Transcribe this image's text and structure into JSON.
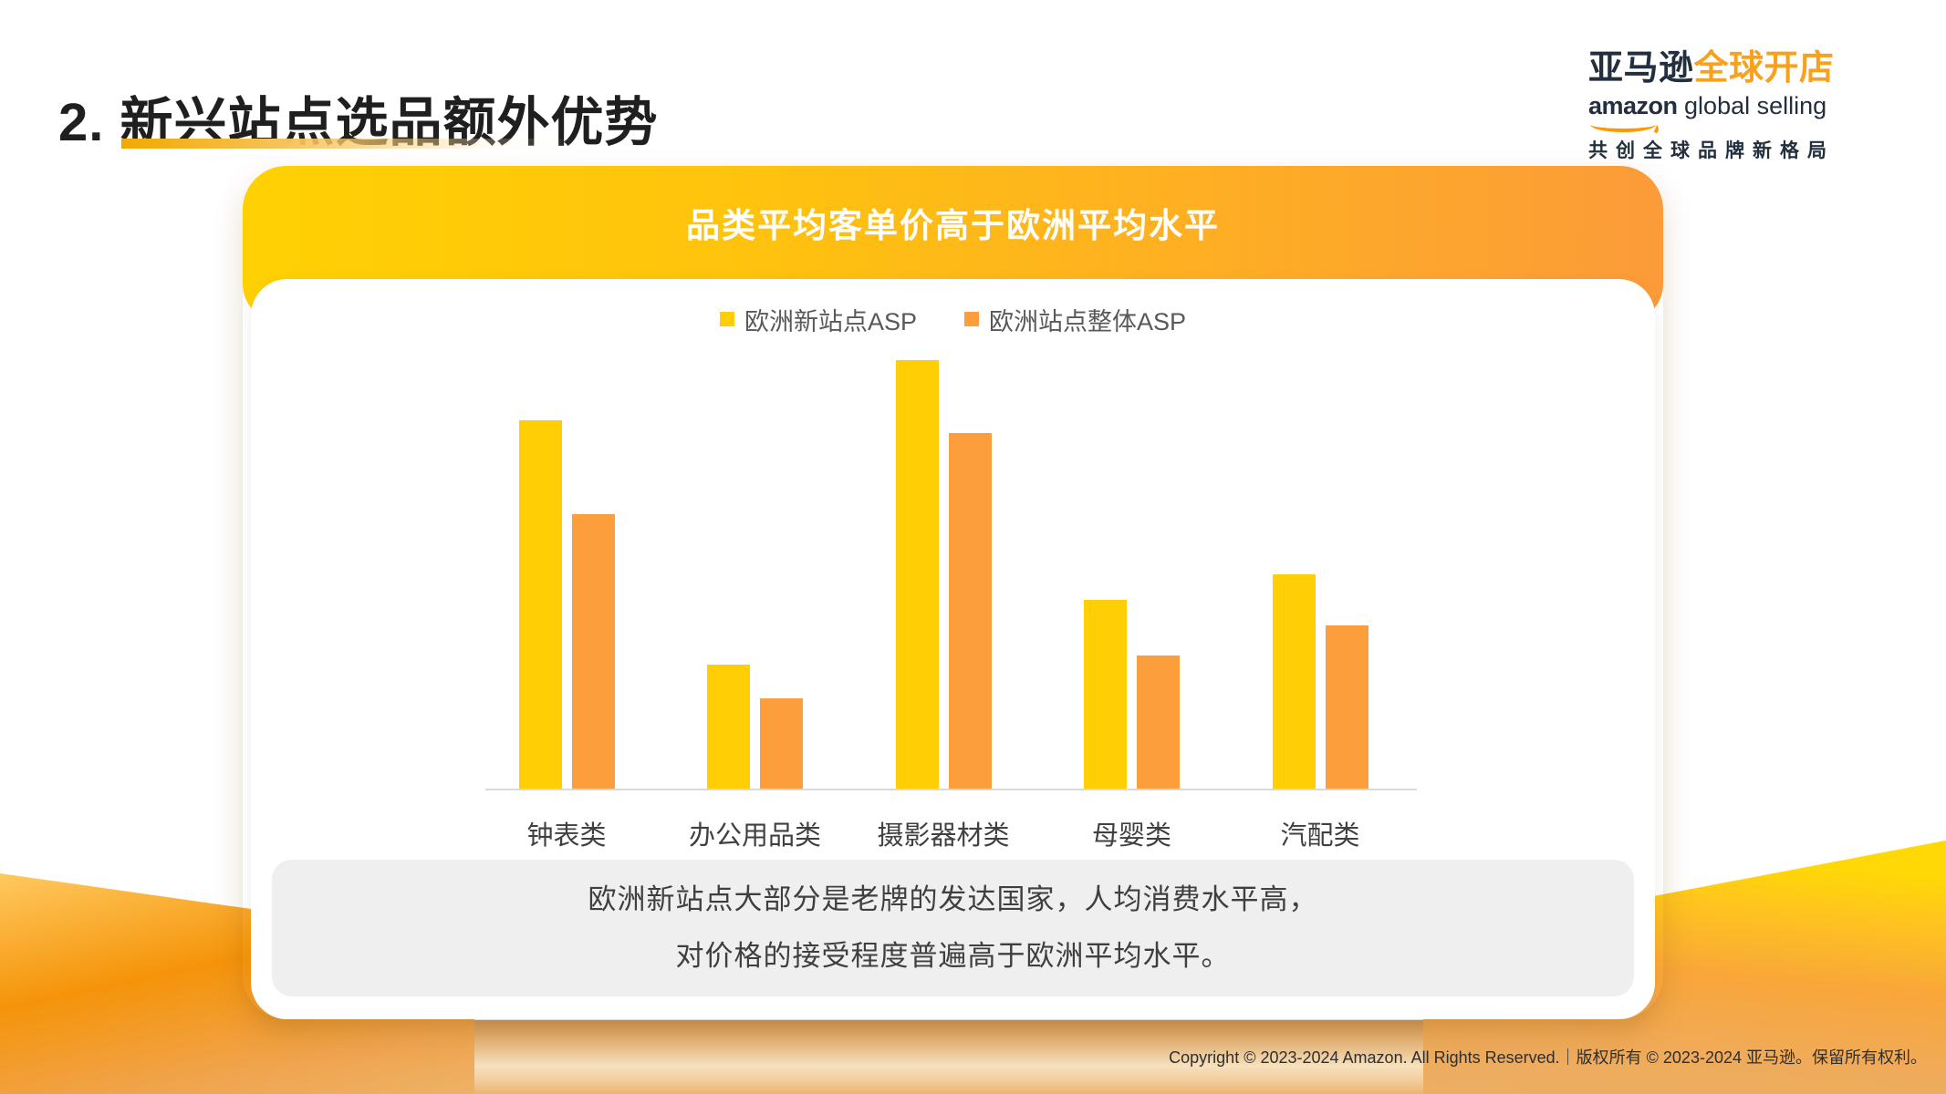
{
  "header": {
    "title": "2. 新兴站点选品额外优势"
  },
  "logo": {
    "cn_dark": "亚马逊",
    "cn_orange": "全球开店",
    "en_bold": "amazon",
    "en_rest": " global selling",
    "tagline": "共创全球品牌新格局"
  },
  "card": {
    "title": "品类平均客单价高于欧洲平均水平",
    "note_line1": "欧洲新站点大部分是老牌的发达国家，人均消费水平高，",
    "note_line2": "对价格的接受程度普遍高于欧洲平均水平。"
  },
  "chart_data": {
    "type": "bar",
    "title": "品类平均客单价高于欧洲平均水平",
    "categories": [
      "钟表类",
      "办公用品类",
      "摄影器材类",
      "母婴类",
      "汽配类"
    ],
    "series": [
      {
        "name": "欧洲新站点ASP",
        "color": "#FFCE05",
        "values": [
          86,
          29,
          100,
          44,
          50
        ]
      },
      {
        "name": "欧洲站点整体ASP",
        "color": "#FD9E3C",
        "values": [
          64,
          21,
          83,
          31,
          38
        ]
      }
    ],
    "xlabel": "",
    "ylabel": "",
    "ylim": [
      0,
      100
    ],
    "grid": false,
    "value_axis_labels_visible": false,
    "legend_position": "top"
  },
  "footer": {
    "copyright": "Copyright © 2023-2024 Amazon. All Rights Reserved.｜版权所有 © 2023-2024 亚马逊。保留所有权利。"
  },
  "colors": {
    "bar_yellow": "#FFCE05",
    "bar_orange": "#FD9E3C",
    "header_gradient_start": "#FFD103",
    "header_gradient_end": "#FC9B39",
    "brand_navy": "#232F3E",
    "brand_orange": "#FF9900",
    "note_box_bg": "#EFEFEF",
    "axis_line": "#D9D9D9"
  }
}
